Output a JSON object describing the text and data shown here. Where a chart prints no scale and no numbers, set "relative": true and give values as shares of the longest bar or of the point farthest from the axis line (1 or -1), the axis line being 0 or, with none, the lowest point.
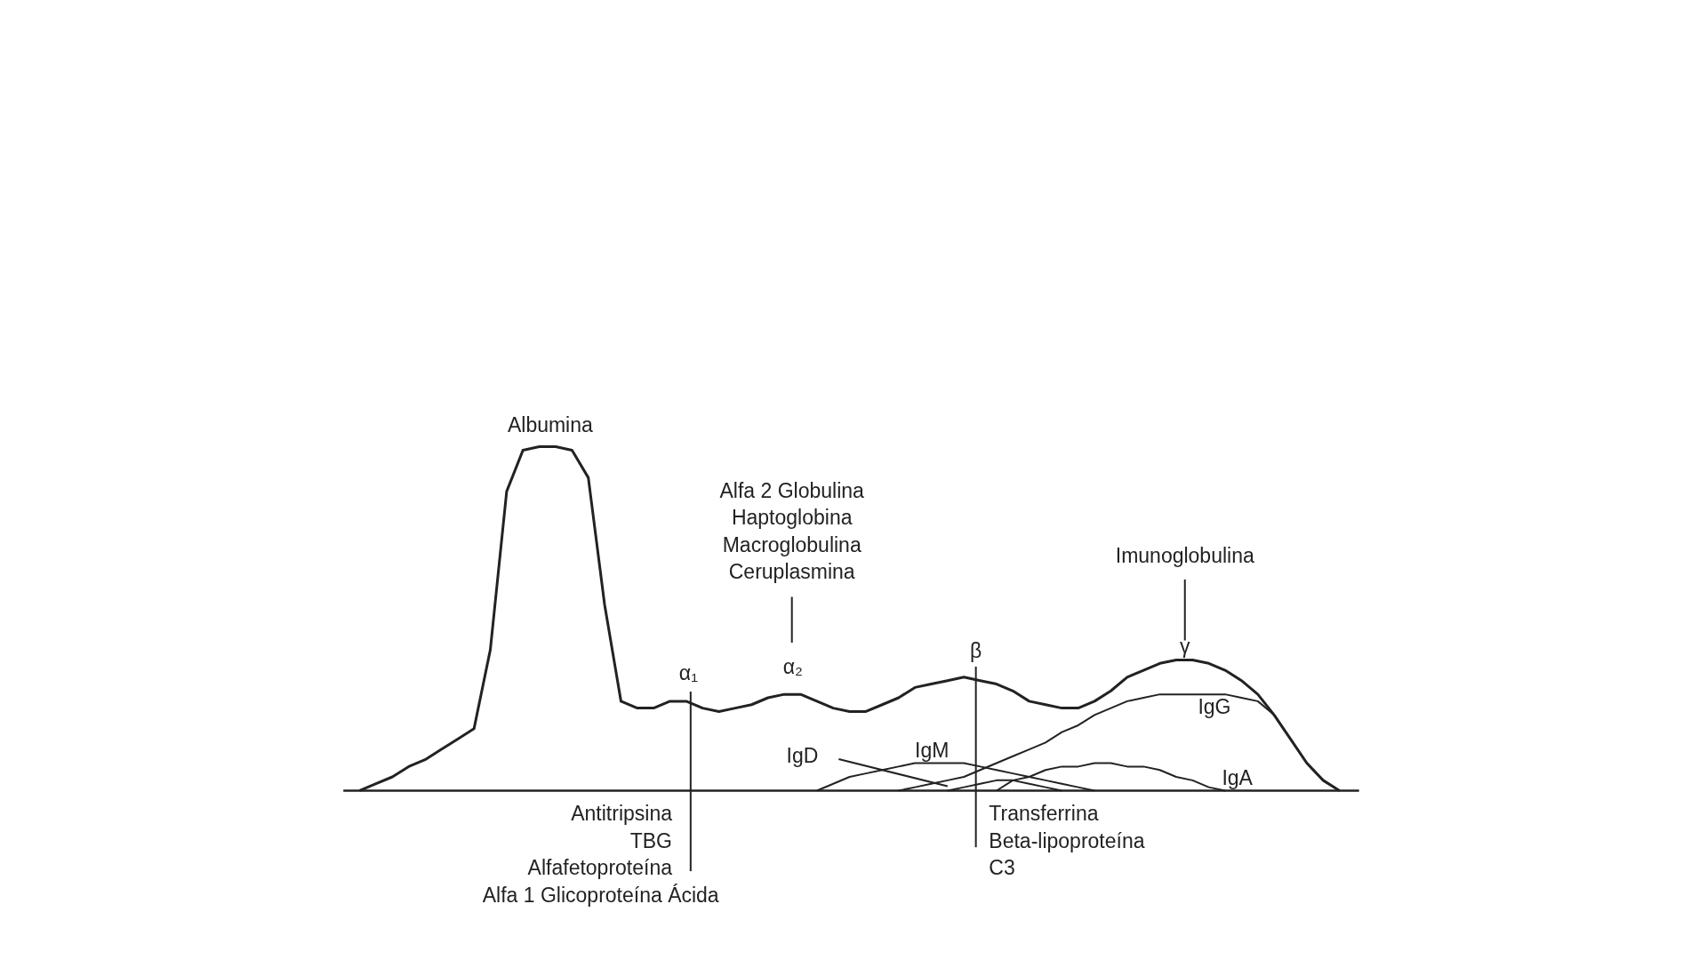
{
  "chart_data": {
    "type": "line",
    "relative": true,
    "grid": false,
    "marker": "none",
    "line_style": "solid",
    "categories": [
      null,
      null,
      null,
      null,
      null,
      null,
      null,
      null,
      null,
      null,
      null,
      null,
      null,
      null,
      null,
      null,
      null,
      null,
      null,
      null,
      null,
      null,
      null,
      null,
      null,
      null,
      null,
      null,
      null,
      null,
      null,
      null,
      null,
      null,
      null,
      null,
      null,
      null,
      null,
      null,
      null,
      null,
      null,
      null,
      null,
      null,
      null,
      null,
      null,
      null,
      null,
      null,
      null,
      null,
      null,
      null,
      null,
      null,
      null,
      null,
      null
    ],
    "series": [
      {
        "color": "#222222",
        "values": [
          0,
          0.02,
          0.04,
          0.07,
          0.09,
          0.12,
          0.15,
          0.18,
          0.41,
          0.87,
          0.99,
          1,
          1,
          0.99,
          0.91,
          0.54,
          0.26,
          0.24,
          0.24,
          0.26,
          0.26,
          0.24,
          0.23,
          0.24,
          0.25,
          0.27,
          0.28,
          0.28,
          0.26,
          0.24,
          0.23,
          0.23,
          0.25,
          0.27,
          0.3,
          0.31,
          0.32,
          0.33,
          0.32,
          0.31,
          0.29,
          0.26,
          0.25,
          0.24,
          0.24,
          0.26,
          0.29,
          0.33,
          0.35,
          0.37,
          0.38,
          0.38,
          0.37,
          0.35,
          0.32,
          0.28,
          0.22,
          0.15,
          0.08,
          0.03,
          0
        ]
      },
      {
        "name": "IgG",
        "color": "#222222",
        "values": [
          null,
          null,
          null,
          null,
          null,
          null,
          null,
          null,
          null,
          null,
          null,
          null,
          null,
          null,
          null,
          null,
          null,
          null,
          null,
          null,
          null,
          null,
          null,
          null,
          null,
          null,
          null,
          null,
          null,
          null,
          null,
          null,
          null,
          0,
          0.01,
          0.02,
          0.03,
          0.04,
          0.06,
          0.08,
          0.1,
          0.12,
          0.14,
          0.17,
          0.19,
          0.22,
          0.24,
          0.26,
          0.27,
          0.28,
          0.28,
          0.28,
          0.28,
          0.28,
          0.27,
          0.26,
          0.22,
          0.15,
          0.08,
          0.03,
          0
        ]
      },
      {
        "name": "IgA",
        "color": "#222222",
        "values": [
          null,
          null,
          null,
          null,
          null,
          null,
          null,
          null,
          null,
          null,
          null,
          null,
          null,
          null,
          null,
          null,
          null,
          null,
          null,
          null,
          null,
          null,
          null,
          null,
          null,
          null,
          null,
          null,
          null,
          null,
          null,
          null,
          null,
          null,
          null,
          null,
          null,
          null,
          null,
          0,
          0.03,
          0.04,
          0.06,
          0.07,
          0.07,
          0.08,
          0.08,
          0.07,
          0.07,
          0.06,
          0.04,
          0.03,
          0.01,
          0,
          null,
          null,
          null,
          null,
          null,
          null,
          null
        ]
      },
      {
        "name": "IgM",
        "color": "#222222",
        "values": [
          null,
          null,
          null,
          null,
          null,
          null,
          null,
          null,
          null,
          null,
          null,
          null,
          null,
          null,
          null,
          null,
          null,
          null,
          null,
          null,
          null,
          null,
          null,
          null,
          null,
          null,
          null,
          null,
          0,
          0.02,
          0.04,
          0.05,
          0.06,
          0.07,
          0.08,
          0.08,
          0.08,
          0.08,
          0.07,
          0.06,
          0.05,
          0.04,
          0.03,
          0.02,
          0.01,
          0,
          null,
          null,
          null,
          null,
          null,
          null,
          null,
          null,
          null,
          null,
          null,
          null,
          null,
          null,
          null
        ]
      },
      {
        "name": "IgD",
        "color": "#222222",
        "values": [
          null,
          null,
          null,
          null,
          null,
          null,
          null,
          null,
          null,
          null,
          null,
          null,
          null,
          null,
          null,
          null,
          null,
          null,
          null,
          null,
          null,
          null,
          null,
          null,
          null,
          null,
          null,
          null,
          null,
          null,
          null,
          null,
          null,
          null,
          null,
          null,
          0,
          0.01,
          0.02,
          0.03,
          0.03,
          0.02,
          0.01,
          0,
          null,
          null,
          null,
          null,
          null,
          null,
          null,
          null,
          null,
          null,
          null,
          null,
          null,
          null,
          null,
          null,
          null
        ]
      }
    ],
    "annotations": [
      "Albumina",
      "Alfa 2 Globulina",
      "Haptoglobina",
      "Macroglobulina",
      "Ceruplasmina",
      "α₁",
      "α₂",
      "β",
      "γ",
      "Imunoglobulina",
      "Antitripsina",
      "TBG",
      "Alfafetoproteína",
      "Alfa 1 Glicoproteína Ácida",
      "Transferrina",
      "Beta-lipoproteína",
      "C3"
    ]
  }
}
